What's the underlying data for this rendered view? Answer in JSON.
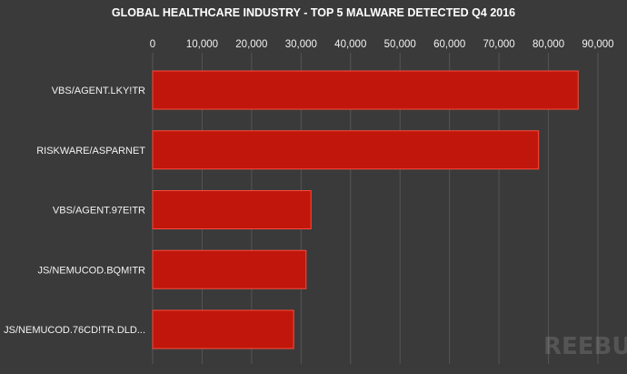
{
  "chart_data": {
    "type": "bar",
    "orientation": "horizontal",
    "title": "GLOBAL HEALTHCARE INDUSTRY - TOP 5 MALWARE DETECTED Q4 2016",
    "categories": [
      "VBS/AGENT.LKY!TR",
      "RISKWARE/ASPARNET",
      "VBS/AGENT.97E!TR",
      "JS/NEMUCOD.BQM!TR",
      "JS/NEMUCOD.76CD!TR.DLD..."
    ],
    "values": [
      86000,
      78000,
      32000,
      31000,
      28500
    ],
    "xlim": [
      0,
      90000
    ],
    "ticks": [
      "0",
      "10,000",
      "20,000",
      "30,000",
      "40,000",
      "50,000",
      "60,000",
      "70,000",
      "80,000",
      "90,000"
    ],
    "xaxis_position": "top",
    "grid": true,
    "legend": "none",
    "colors": {
      "background": "#3a3a3a",
      "bar": "#c0160c",
      "bar_edge": "#ff4a3a",
      "grid": "#555555",
      "text": "#f2f2f2"
    }
  },
  "watermark": "REEBUF"
}
